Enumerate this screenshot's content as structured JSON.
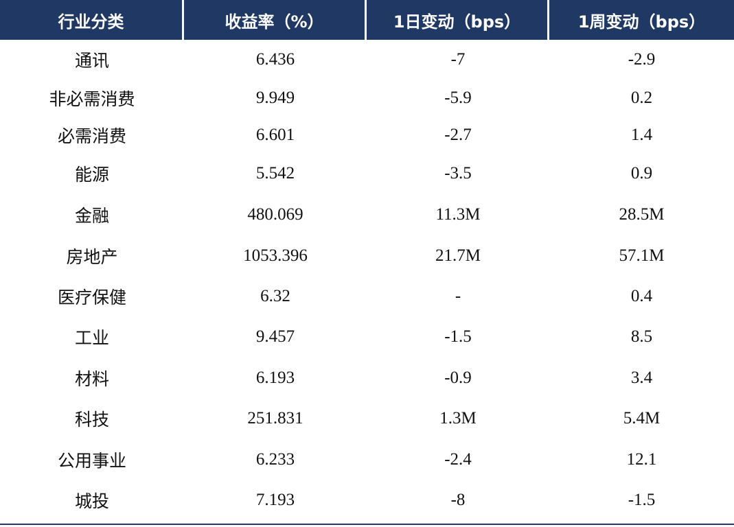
{
  "table": {
    "headers": [
      "行业分类",
      "收益率（%）",
      "1日变动（bps）",
      "1周变动（bps）"
    ],
    "rows": [
      {
        "sector": "通讯",
        "yield": "6.436",
        "d1": "-7",
        "w1": "-2.9"
      },
      {
        "sector": "非必需消费",
        "yield": "9.949",
        "d1": "-5.9",
        "w1": "0.2"
      },
      {
        "sector": "必需消费",
        "yield": "6.601",
        "d1": "-2.7",
        "w1": "1.4"
      },
      {
        "sector": "能源",
        "yield": "5.542",
        "d1": "-3.5",
        "w1": "0.9"
      },
      {
        "sector": "金融",
        "yield": "480.069",
        "d1": "11.3M",
        "w1": "28.5M"
      },
      {
        "sector": "房地产",
        "yield": "1053.396",
        "d1": "21.7M",
        "w1": "57.1M"
      },
      {
        "sector": "医疗保健",
        "yield": "6.32",
        "d1": "-",
        "w1": "0.4"
      },
      {
        "sector": "工业",
        "yield": "9.457",
        "d1": "-1.5",
        "w1": "8.5"
      },
      {
        "sector": "材料",
        "yield": "6.193",
        "d1": "-0.9",
        "w1": "3.4"
      },
      {
        "sector": "科技",
        "yield": "251.831",
        "d1": "1.3M",
        "w1": "5.4M"
      },
      {
        "sector": "公用事业",
        "yield": "6.233",
        "d1": "-2.4",
        "w1": "12.1"
      },
      {
        "sector": "城投",
        "yield": "7.193",
        "d1": "-8",
        "w1": "-1.5"
      }
    ]
  }
}
